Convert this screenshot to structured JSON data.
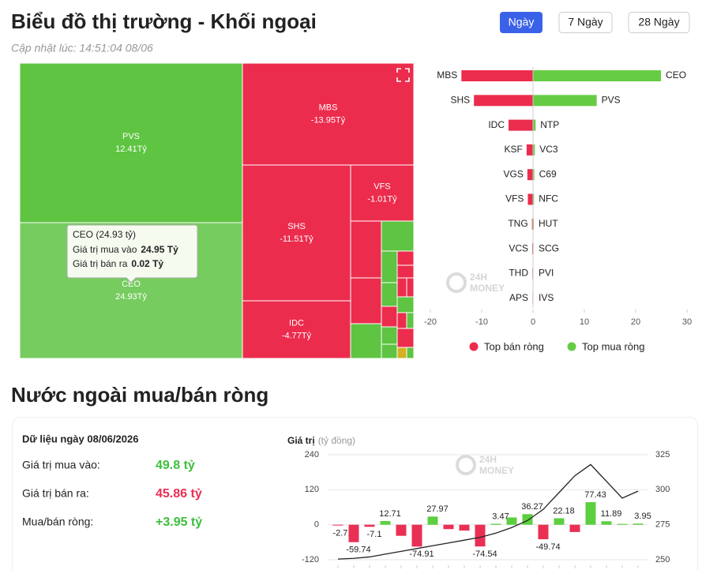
{
  "header": {
    "title": "Biểu đồ thị trường - Khối ngoại",
    "buttons": [
      "Ngày",
      "7 Ngày",
      "28 Ngày"
    ],
    "updated": "Cập nhật lúc: 14:51:04 08/06"
  },
  "watermark": [
    "24H",
    "MONEY"
  ],
  "chart_data": [
    {
      "type": "treemap",
      "labels": [
        "PVS",
        "CEO",
        "MBS",
        "SHS",
        "IDC",
        "VFS"
      ],
      "values": [
        12.41,
        24.93,
        -13.95,
        -11.51,
        -4.77,
        -1.01
      ],
      "value_labels": [
        "12.41Tỷ",
        "24.93Tỷ",
        "-13.95Tỷ",
        "-11.51Tỷ",
        "-4.77Tỷ",
        "-1.01Tỷ"
      ],
      "pos_color": "#5ec442",
      "neg_color": "#ec2c4d",
      "tooltip": {
        "title": "CEO (24.93 tỷ)",
        "rows": [
          {
            "label": "Giá trị mua vào",
            "value": "24.95 Tỷ"
          },
          {
            "label": "Giá trị bán ra",
            "value": "0.02 Tỷ"
          }
        ]
      }
    },
    {
      "type": "butterfly",
      "series": [
        {
          "name": "Top bán ròng",
          "color": "#ec2c4d",
          "categories": [
            "MBS",
            "SHS",
            "IDC",
            "KSF",
            "VGS",
            "VFS",
            "TNG",
            "VCS",
            "THD",
            "APS"
          ],
          "values": [
            -13.95,
            -11.51,
            -4.77,
            -1.25,
            -1.1,
            -1.01,
            -0.2,
            -0.15,
            -0.12,
            -0.1
          ]
        },
        {
          "name": "Top mua ròng",
          "color": "#66cc44",
          "categories": [
            "CEO",
            "PVS",
            "NTP",
            "VC3",
            "C69",
            "NFC",
            "HUT",
            "SCG",
            "PVI",
            "IVS"
          ],
          "values": [
            24.93,
            12.41,
            0.5,
            0.35,
            0.25,
            0.2,
            0.15,
            0.1,
            0.08,
            0.05
          ]
        }
      ],
      "xlim": [
        -20,
        30
      ],
      "xticks": [
        -20,
        -10,
        0,
        10,
        20,
        30
      ]
    },
    {
      "type": "bar_line",
      "y_label": "Giá trị",
      "y_unit": "(tỷ đồng)",
      "ylim": [
        -120,
        240
      ],
      "yticks": [
        -120,
        0,
        120,
        240
      ],
      "y2lim": [
        250,
        325
      ],
      "y2ticks": [
        250,
        275,
        300,
        325
      ],
      "grid": true,
      "series": [
        {
          "type": "bar",
          "pos_color": "#5ccf40",
          "neg_color": "#ea2f55",
          "values": [
            -2.71,
            -59.74,
            -7.1,
            12.71,
            -38,
            -74.91,
            27.97,
            -15,
            -20,
            -74.54,
            3.47,
            25,
            36.27,
            -49.74,
            22.18,
            -25,
            77.43,
            11.89,
            3,
            3.95
          ],
          "value_labels": [
            "-2.71",
            "-59.74",
            "-7.1",
            "12.71",
            null,
            "-74.91",
            "27.97",
            null,
            null,
            "-74.54",
            "3.47",
            null,
            "36.27",
            "-49.74",
            "22.18",
            null,
            "77.43",
            "11.89",
            null,
            "3.95"
          ]
        },
        {
          "type": "line",
          "axis": "y2",
          "color": "#222222",
          "values": [
            250.5,
            251,
            252,
            254,
            256,
            258,
            260,
            262,
            264,
            266,
            269,
            273,
            278,
            286,
            298,
            310,
            318,
            306,
            294,
            299
          ]
        }
      ]
    }
  ],
  "section_title": "Nước ngoài mua/bán ròng",
  "summary": {
    "title": "Dữ liệu ngày 08/06/2026",
    "rows": [
      {
        "label": "Giá trị mua vào:",
        "value": "49.8 tỷ"
      },
      {
        "label": "Giá trị bán ra:",
        "value": "45.86 tỷ"
      },
      {
        "label": "Mua/bán ròng:",
        "value": "+3.95 tỷ"
      }
    ]
  }
}
